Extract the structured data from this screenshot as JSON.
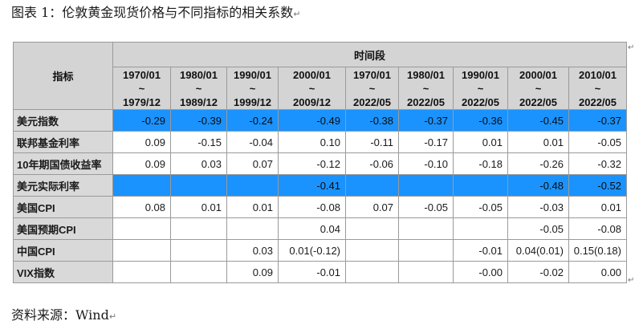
{
  "caption": "图表 1：伦敦黄金现货价格与不同指标的相关系数",
  "source": "资料来源：Wind",
  "table": {
    "corner_label": "指标",
    "group_header": "时间段",
    "periods": [
      {
        "start": "1970/01",
        "sep": "~",
        "end": "1979/12"
      },
      {
        "start": "1980/01",
        "sep": "~",
        "end": "1989/12"
      },
      {
        "start": "1990/01",
        "sep": "~",
        "end": "1999/12"
      },
      {
        "start": "2000/01",
        "sep": "~",
        "end": "2009/12"
      },
      {
        "start": "1970/01",
        "sep": "~",
        "end": "2022/05"
      },
      {
        "start": "1980/01",
        "sep": "~",
        "end": "2022/05"
      },
      {
        "start": "1990/01",
        "sep": "~",
        "end": "2022/05"
      },
      {
        "start": "2000/01",
        "sep": "~",
        "end": "2022/05"
      },
      {
        "start": "2010/01",
        "sep": "~",
        "end": "2022/05"
      }
    ],
    "rows": [
      {
        "label": "美元指数",
        "highlight": true,
        "values": [
          "-0.29",
          "-0.39",
          "-0.24",
          "-0.49",
          "-0.38",
          "-0.37",
          "-0.36",
          "-0.45",
          "-0.37"
        ]
      },
      {
        "label": "联邦基金利率",
        "highlight": false,
        "values": [
          "0.09",
          "-0.15",
          "-0.04",
          "0.10",
          "-0.11",
          "-0.17",
          "0.01",
          "0.01",
          "-0.05"
        ]
      },
      {
        "label": "10年期国债收益率",
        "highlight": false,
        "values": [
          "0.09",
          "0.03",
          "0.07",
          "-0.12",
          "-0.06",
          "-0.10",
          "-0.18",
          "-0.26",
          "-0.32"
        ]
      },
      {
        "label": "美元实际利率",
        "highlight": true,
        "values": [
          "",
          "",
          "",
          "-0.41",
          "",
          "",
          "",
          "-0.48",
          "-0.52"
        ]
      },
      {
        "label": "美国CPI",
        "highlight": false,
        "values": [
          "0.08",
          "0.01",
          "0.01",
          "-0.08",
          "0.07",
          "-0.05",
          "-0.05",
          "-0.03",
          "0.01"
        ]
      },
      {
        "label": "美国预期CPI",
        "highlight": false,
        "values": [
          "",
          "",
          "",
          "0.04",
          "",
          "",
          "",
          "-0.05",
          "-0.08"
        ]
      },
      {
        "label": "中国CPI",
        "highlight": false,
        "values": [
          "",
          "",
          "0.03",
          "0.01(-0.12)",
          "",
          "",
          "-0.01",
          "0.04(0.01)",
          "0.15(0.18)"
        ]
      },
      {
        "label": "VIX指数",
        "highlight": false,
        "values": [
          "",
          "",
          "0.09",
          "-0.01",
          "",
          "",
          "-0.00",
          "-0.02",
          "0.00"
        ]
      }
    ]
  }
}
